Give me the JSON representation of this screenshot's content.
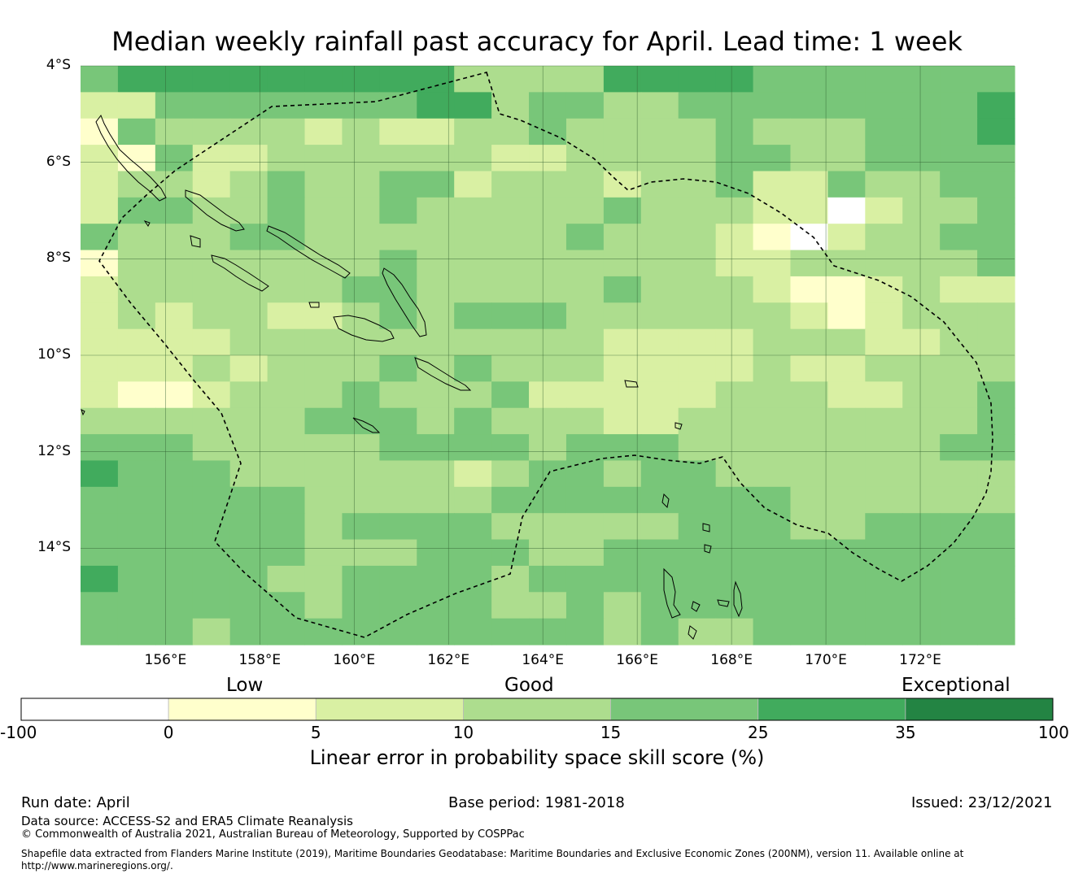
{
  "title": "Median weekly rainfall past accuracy for April. Lead time: 1 week",
  "map": {
    "lon_range": [
      154.2,
      174.0
    ],
    "lat_range": [
      -16.0,
      -4.0
    ],
    "lat_labels": [
      "4°S",
      "6°S",
      "8°S",
      "10°S",
      "12°S",
      "14°S"
    ],
    "lat_values": [
      -4,
      -6,
      -8,
      -10,
      -12,
      -14
    ],
    "lon_labels": [
      "156°E",
      "158°E",
      "160°E",
      "162°E",
      "164°E",
      "166°E",
      "168°E",
      "170°E",
      "172°E"
    ],
    "lon_values": [
      156,
      158,
      160,
      162,
      164,
      166,
      168,
      170,
      172
    ],
    "grid_colors": [
      "#ffffff",
      "#ffffcc",
      "#d9f0a3",
      "#addd8e",
      "#78c679",
      "#41ab5d",
      "#238443"
    ],
    "grid_rows": [
      "4555555555333355554444444",
      "2244444445534433444444445",
      "1433332322334333343334445",
      "2142233333322333344334444",
      "2332343344233323342243344",
      "2443343343333343332202334",
      "4333443333333433321023344",
      "1333333343333333322333334",
      "2333333443333343332112322",
      "2323322343444333333212333",
      "2222333333333322223332233",
      "2223233343433322223223333",
      "2112333433342222233322334",
      "3333334443433322333333334",
      "4443333344443444333333344",
      "5444333333234434433333333",
      "4444443333344444444333333",
      "4444443444433333444334444",
      "4444443334443344444444444",
      "5444433444434444444444444",
      "4444443444433434444444444",
      "4443444444444434334444444"
    ]
  },
  "colorbar": {
    "categories": [
      "Low",
      "Good",
      "Exceptional"
    ],
    "ticks": [
      "-100",
      "0",
      "5",
      "10",
      "15",
      "25",
      "35",
      "100"
    ],
    "colors": [
      "#ffffff",
      "#ffffcc",
      "#d9f0a3",
      "#addd8e",
      "#78c679",
      "#41ab5d",
      "#238443"
    ],
    "label": "Linear error in probability space skill score (%)"
  },
  "footer": {
    "run_date": "Run date: April",
    "base_period": "Base period: 1981-2018",
    "issued": "Issued: 23/12/2021",
    "data_source": "Data source: ACCESS-S2 and ERA5 Climate Reanalysis",
    "copyright": "© Commonwealth of Australia 2021, Australian Bureau of Meteorology, Supported by COSPPac",
    "shapefile_line1": "Shapefile data extracted from Flanders Marine Institute (2019), Maritime Boundaries Geodatabase: Maritime Boundaries and Exclusive Economic Zones (200NM), version 11. Available online at",
    "shapefile_line2": "http://www.marineregions.org/."
  }
}
